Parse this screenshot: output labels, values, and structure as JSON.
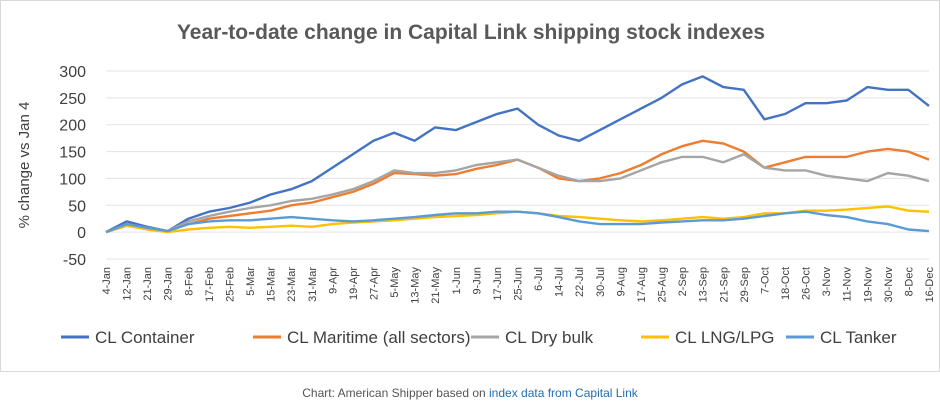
{
  "chart_data": {
    "type": "line",
    "title": "Year-to-date change in Capital Link shipping stock indexes",
    "ylabel": "% change vs Jan 4",
    "xlabel": "",
    "ylim": [
      -50,
      300
    ],
    "yticks": [
      300,
      250,
      200,
      150,
      100,
      50,
      0,
      -50
    ],
    "grid": true,
    "legend_position": "bottom",
    "x": [
      "4-Jan",
      "12-Jan",
      "21-Jan",
      "29-Jan",
      "8-Feb",
      "17-Feb",
      "25-Feb",
      "5-Mar",
      "15-Mar",
      "23-Mar",
      "31-Mar",
      "9-Apr",
      "19-Apr",
      "27-Apr",
      "5-May",
      "13-May",
      "21-May",
      "1-Jun",
      "9-Jun",
      "17-Jun",
      "25-Jun",
      "6-Jul",
      "14-Jul",
      "22-Jul",
      "30-Jul",
      "9-Aug",
      "17-Aug",
      "25-Aug",
      "2-Sep",
      "13-Sep",
      "21-Sep",
      "29-Sep",
      "7-Oct",
      "18-Oct",
      "26-Oct",
      "3-Nov",
      "11-Nov",
      "19-Nov",
      "30-Nov",
      "8-Dec",
      "16-Dec"
    ],
    "series": [
      {
        "name": "CL Container",
        "color": "#4472c4",
        "values": [
          0,
          20,
          10,
          2,
          25,
          38,
          45,
          55,
          70,
          80,
          95,
          120,
          145,
          170,
          185,
          170,
          195,
          190,
          205,
          220,
          230,
          200,
          180,
          170,
          190,
          210,
          230,
          250,
          275,
          290,
          270,
          265,
          210,
          220,
          240,
          240,
          245,
          270,
          265,
          265,
          235
        ]
      },
      {
        "name": "CL Maritime (all sectors)",
        "color": "#ed7d31",
        "values": [
          0,
          12,
          8,
          2,
          15,
          25,
          30,
          35,
          40,
          50,
          55,
          65,
          75,
          90,
          110,
          108,
          105,
          108,
          118,
          125,
          135,
          120,
          100,
          95,
          100,
          110,
          125,
          145,
          160,
          170,
          165,
          150,
          120,
          130,
          140,
          140,
          140,
          150,
          155,
          150,
          135
        ]
      },
      {
        "name": "CL Dry bulk",
        "color": "#a5a5a5",
        "values": [
          0,
          15,
          8,
          2,
          20,
          30,
          38,
          45,
          50,
          58,
          62,
          70,
          80,
          95,
          115,
          110,
          110,
          115,
          125,
          130,
          135,
          120,
          105,
          95,
          95,
          100,
          115,
          130,
          140,
          140,
          130,
          145,
          120,
          115,
          115,
          105,
          100,
          95,
          110,
          105,
          95
        ]
      },
      {
        "name": "CL LNG/LPG",
        "color": "#ffc000",
        "values": [
          0,
          12,
          5,
          0,
          5,
          8,
          10,
          8,
          10,
          12,
          10,
          15,
          18,
          20,
          22,
          25,
          28,
          30,
          32,
          35,
          38,
          35,
          30,
          28,
          25,
          22,
          20,
          22,
          25,
          28,
          25,
          28,
          35,
          35,
          40,
          40,
          42,
          45,
          48,
          40,
          38
        ]
      },
      {
        "name": "CL Tanker",
        "color": "#5b9bd5",
        "values": [
          0,
          15,
          8,
          2,
          15,
          20,
          22,
          22,
          25,
          28,
          25,
          22,
          20,
          22,
          25,
          28,
          32,
          35,
          35,
          38,
          38,
          35,
          28,
          20,
          15,
          15,
          15,
          18,
          20,
          22,
          22,
          25,
          30,
          35,
          38,
          32,
          28,
          20,
          15,
          5,
          2
        ]
      }
    ]
  },
  "source_credit": {
    "prefix": "Chart: American Shipper based on ",
    "link_text": "index data from Capital Link"
  }
}
